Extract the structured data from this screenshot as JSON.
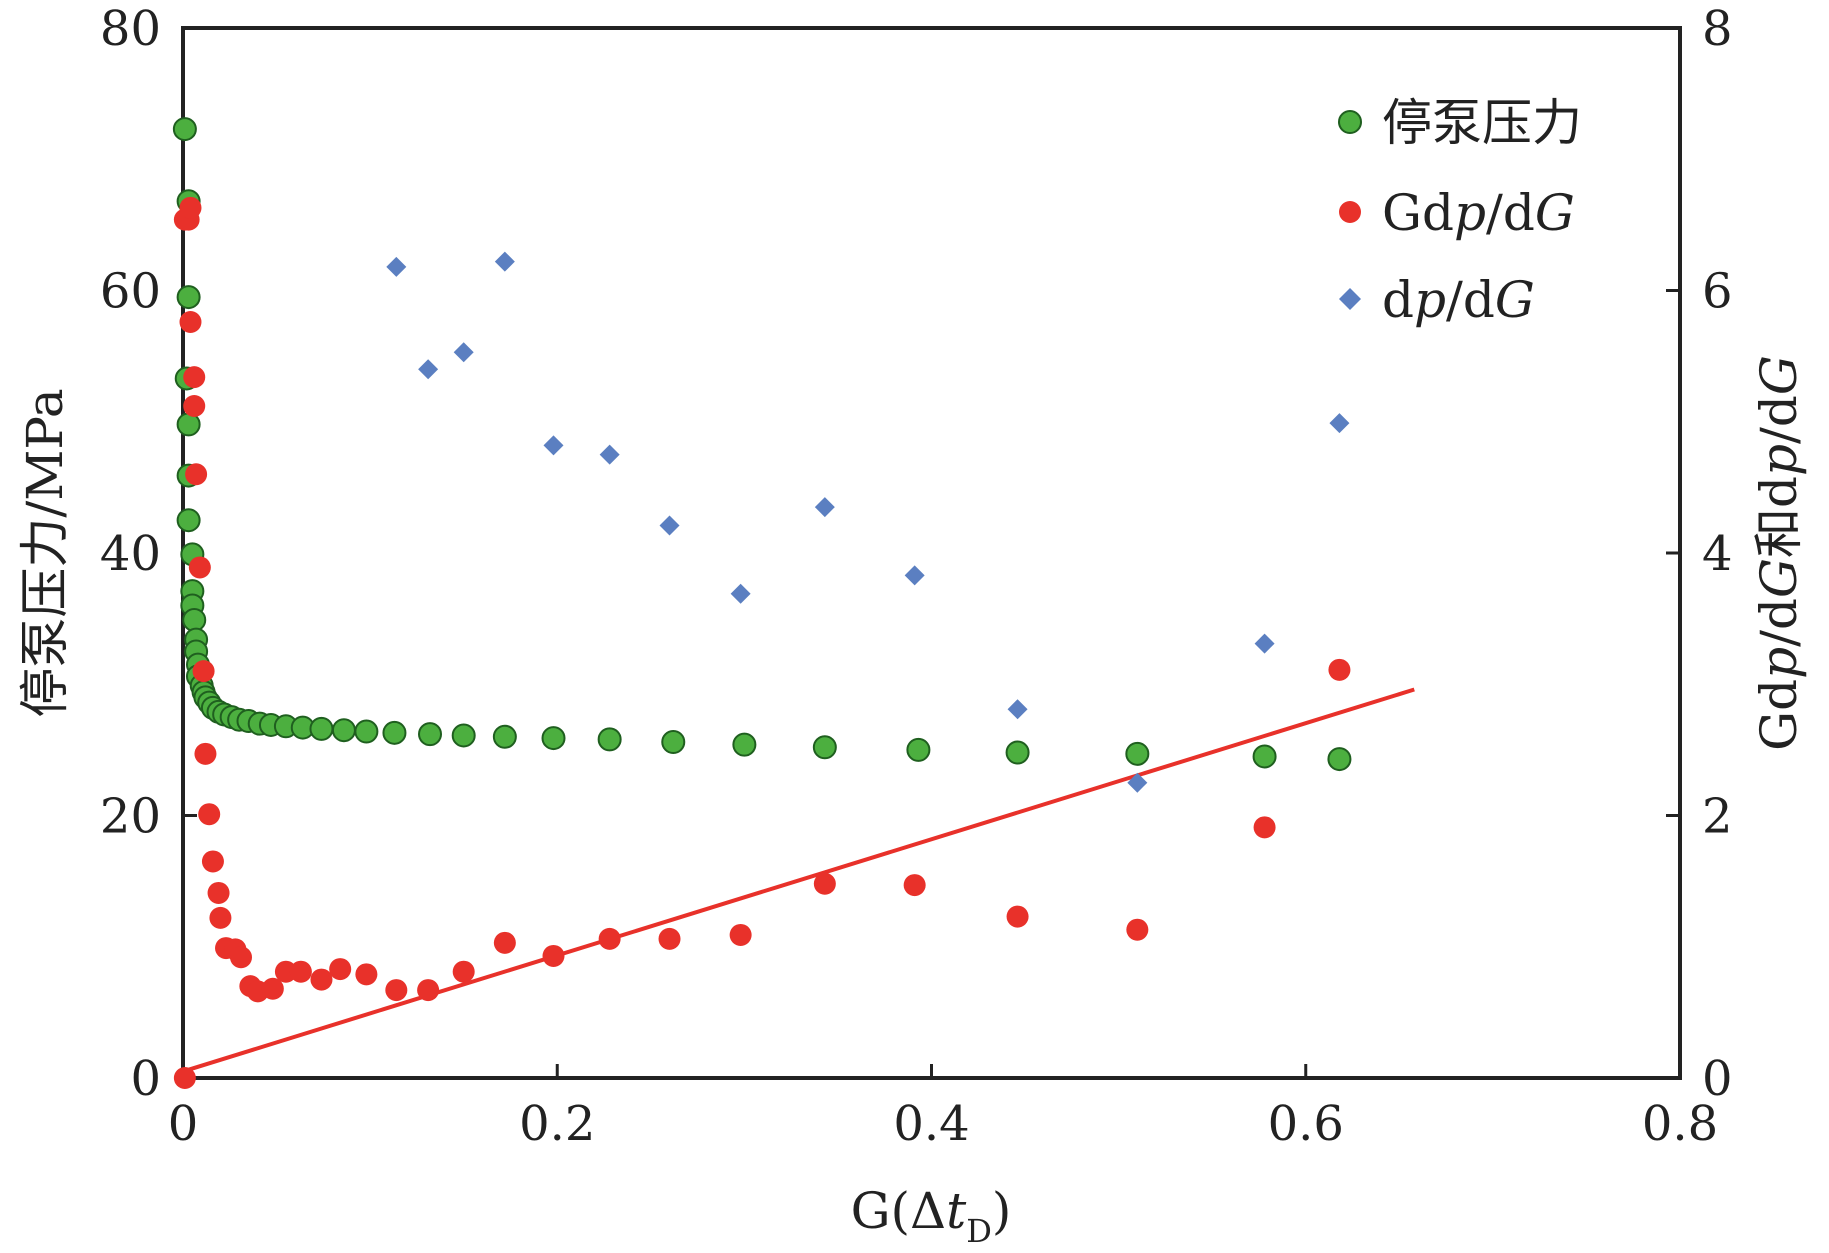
{
  "chart_data": {
    "type": "scatter",
    "xlabel": "G(Δt_D)",
    "ylabel_left": "停泵压力/MPa",
    "ylabel_right": "Gdp/dG和dp/dG",
    "xlim": [
      0,
      0.8
    ],
    "ylim_left": [
      0,
      80
    ],
    "ylim_right": [
      0,
      8
    ],
    "x_ticks": [
      "0",
      "0.2",
      "0.4",
      "0.6",
      "0.8"
    ],
    "y_ticks_left": [
      "0",
      "20",
      "40",
      "60",
      "80"
    ],
    "y_ticks_right": [
      "0",
      "2",
      "4",
      "6",
      "8"
    ],
    "grid": false,
    "legend_position": "top-right",
    "legend": [
      "停泵压力",
      "Gdp/dG",
      "dp/dG"
    ],
    "colors": {
      "pressure": "#4caf3f",
      "gdp": "#e8312a",
      "dp": "#5b7fc1",
      "trend": "#e8312a"
    },
    "series": [
      {
        "name": "停泵压力",
        "axis": "left",
        "marker": "circle",
        "points": [
          [
            0.001,
            72.3
          ],
          [
            0.003,
            66.8
          ],
          [
            0.003,
            59.5
          ],
          [
            0.002,
            53.3
          ],
          [
            0.003,
            49.8
          ],
          [
            0.003,
            45.9
          ],
          [
            0.003,
            42.5
          ],
          [
            0.005,
            39.9
          ],
          [
            0.005,
            37.1
          ],
          [
            0.005,
            36.0
          ],
          [
            0.006,
            34.9
          ],
          [
            0.007,
            33.4
          ],
          [
            0.007,
            32.5
          ],
          [
            0.008,
            31.5
          ],
          [
            0.008,
            30.6
          ],
          [
            0.01,
            29.9
          ],
          [
            0.011,
            29.4
          ],
          [
            0.012,
            29.0
          ],
          [
            0.014,
            28.6
          ],
          [
            0.016,
            28.2
          ],
          [
            0.019,
            27.9
          ],
          [
            0.022,
            27.7
          ],
          [
            0.026,
            27.5
          ],
          [
            0.03,
            27.3
          ],
          [
            0.035,
            27.2
          ],
          [
            0.041,
            27.0
          ],
          [
            0.047,
            26.9
          ],
          [
            0.055,
            26.8
          ],
          [
            0.064,
            26.7
          ],
          [
            0.074,
            26.6
          ],
          [
            0.086,
            26.5
          ],
          [
            0.098,
            26.4
          ],
          [
            0.113,
            26.3
          ],
          [
            0.132,
            26.2
          ],
          [
            0.15,
            26.1
          ],
          [
            0.172,
            26.0
          ],
          [
            0.198,
            25.9
          ],
          [
            0.228,
            25.8
          ],
          [
            0.262,
            25.6
          ],
          [
            0.3,
            25.4
          ],
          [
            0.343,
            25.2
          ],
          [
            0.393,
            25.0
          ],
          [
            0.446,
            24.8
          ],
          [
            0.51,
            24.7
          ],
          [
            0.578,
            24.5
          ],
          [
            0.618,
            24.3
          ]
        ]
      },
      {
        "name": "Gdp/dG",
        "axis": "right",
        "marker": "circle",
        "points": [
          [
            0.001,
            0.0
          ],
          [
            0.001,
            6.54
          ],
          [
            0.003,
            6.54
          ],
          [
            0.004,
            6.63
          ],
          [
            0.004,
            5.76
          ],
          [
            0.006,
            5.34
          ],
          [
            0.006,
            5.12
          ],
          [
            0.007,
            4.6
          ],
          [
            0.009,
            3.89
          ],
          [
            0.011,
            3.1
          ],
          [
            0.012,
            2.47
          ],
          [
            0.014,
            2.01
          ],
          [
            0.016,
            1.65
          ],
          [
            0.019,
            1.41
          ],
          [
            0.02,
            1.22
          ],
          [
            0.023,
            0.99
          ],
          [
            0.028,
            0.98
          ],
          [
            0.031,
            0.92
          ],
          [
            0.036,
            0.7
          ],
          [
            0.04,
            0.66
          ],
          [
            0.048,
            0.68
          ],
          [
            0.055,
            0.81
          ],
          [
            0.063,
            0.81
          ],
          [
            0.074,
            0.75
          ],
          [
            0.084,
            0.83
          ],
          [
            0.098,
            0.79
          ],
          [
            0.114,
            0.67
          ],
          [
            0.131,
            0.67
          ],
          [
            0.15,
            0.81
          ],
          [
            0.172,
            1.03
          ],
          [
            0.198,
            0.93
          ],
          [
            0.228,
            1.06
          ],
          [
            0.26,
            1.06
          ],
          [
            0.298,
            1.09
          ],
          [
            0.343,
            1.48
          ],
          [
            0.391,
            1.47
          ],
          [
            0.446,
            1.23
          ],
          [
            0.51,
            1.13
          ],
          [
            0.578,
            1.91
          ],
          [
            0.618,
            3.11
          ]
        ]
      },
      {
        "name": "dp/dG",
        "axis": "right",
        "marker": "diamond",
        "points": [
          [
            0.114,
            6.18
          ],
          [
            0.131,
            5.4
          ],
          [
            0.15,
            5.53
          ],
          [
            0.172,
            6.22
          ],
          [
            0.198,
            4.82
          ],
          [
            0.228,
            4.75
          ],
          [
            0.26,
            4.21
          ],
          [
            0.298,
            3.69
          ],
          [
            0.343,
            4.35
          ],
          [
            0.391,
            3.83
          ],
          [
            0.446,
            2.81
          ],
          [
            0.51,
            2.25
          ],
          [
            0.578,
            3.31
          ],
          [
            0.618,
            4.99
          ]
        ]
      }
    ],
    "trend_line": {
      "axis": "right",
      "x": [
        0,
        0.658
      ],
      "y": [
        0.05,
        2.96
      ]
    }
  }
}
